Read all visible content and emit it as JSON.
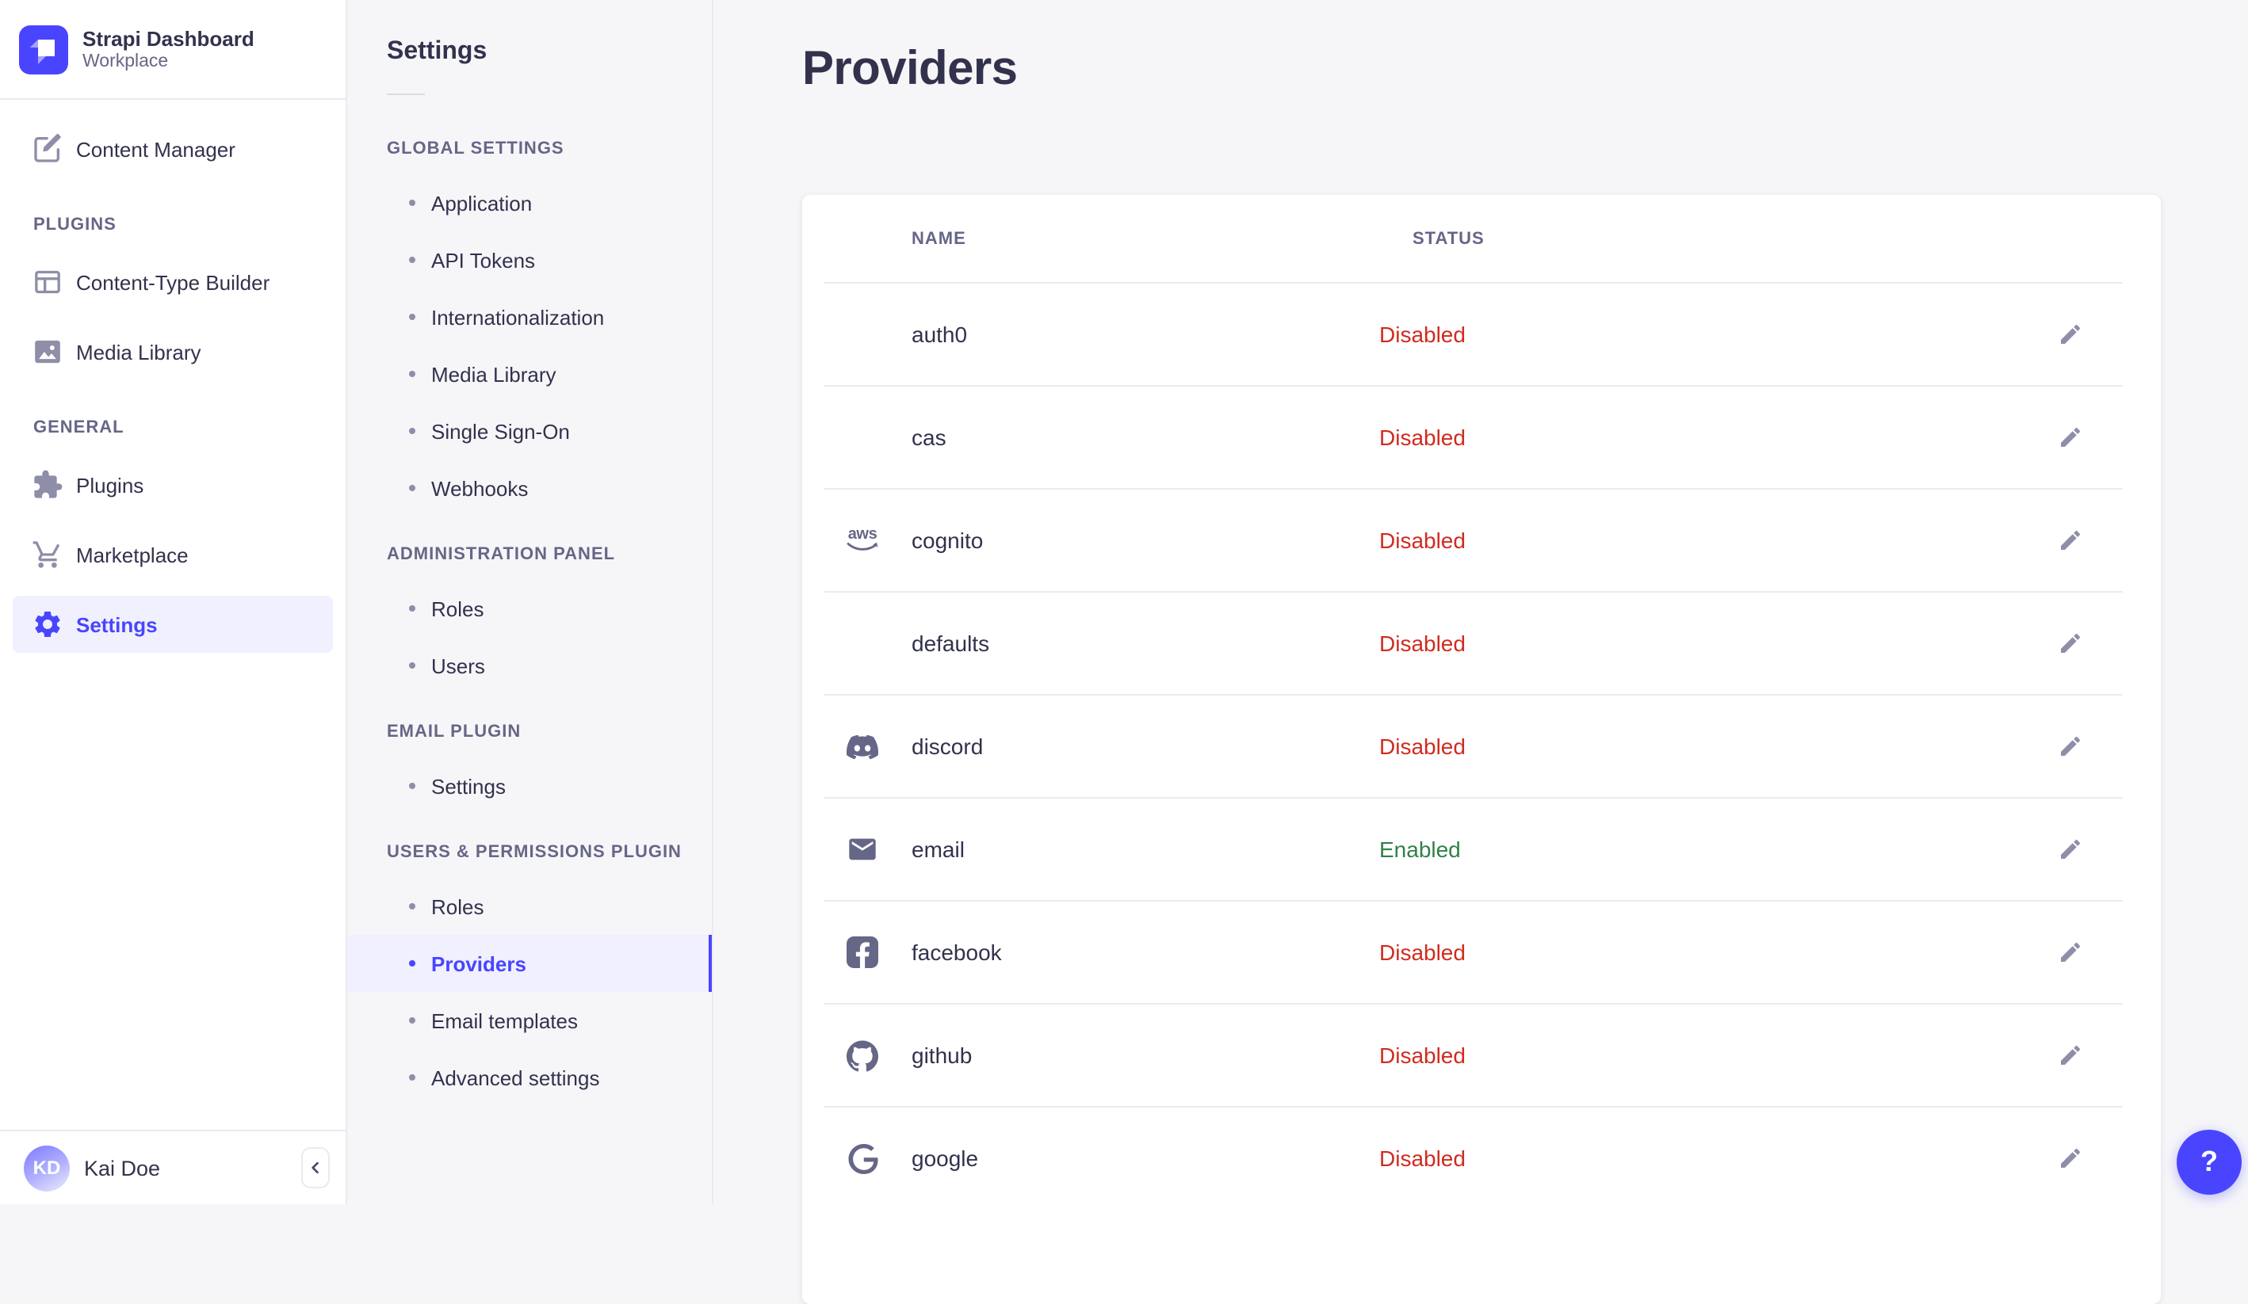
{
  "brand": {
    "name": "Strapi Dashboard",
    "workplace": "Workplace",
    "logo_icon": "strapi-logo-icon"
  },
  "colors": {
    "primary": "#4945ff",
    "primary_bg": "#f0f0ff",
    "text": "#32324d",
    "muted": "#666687",
    "icon_gray": "#8e8ea9",
    "border": "#eaeaef",
    "bg": "#f6f6f9",
    "danger": "#d02b20",
    "success": "#328048"
  },
  "sidebar": {
    "items_top": [
      {
        "label": "Content Manager",
        "icon": "content-manager-icon"
      }
    ],
    "sections": [
      {
        "label": "PLUGINS",
        "items": [
          {
            "label": "Content-Type Builder",
            "icon": "content-type-builder-icon"
          },
          {
            "label": "Media Library",
            "icon": "media-library-icon"
          }
        ]
      },
      {
        "label": "GENERAL",
        "items": [
          {
            "label": "Plugins",
            "icon": "plugins-icon"
          },
          {
            "label": "Marketplace",
            "icon": "marketplace-icon"
          },
          {
            "label": "Settings",
            "icon": "gear-icon",
            "active": true
          }
        ]
      }
    ],
    "user": {
      "name": "Kai Doe",
      "initials": "KD"
    },
    "collapse_icon": "chevron-left-icon"
  },
  "settings_nav": {
    "title": "Settings",
    "sections": [
      {
        "label": "GLOBAL SETTINGS",
        "items": [
          "Application",
          "API Tokens",
          "Internationalization",
          "Media Library",
          "Single Sign-On",
          "Webhooks"
        ]
      },
      {
        "label": "ADMINISTRATION PANEL",
        "items": [
          "Roles",
          "Users"
        ]
      },
      {
        "label": "EMAIL PLUGIN",
        "items": [
          "Settings"
        ]
      },
      {
        "label": "USERS & PERMISSIONS PLUGIN",
        "items": [
          "Roles",
          {
            "label": "Providers",
            "active": true
          },
          "Email templates",
          "Advanced settings"
        ]
      }
    ]
  },
  "main": {
    "title": "Providers",
    "table": {
      "columns": [
        "NAME",
        "STATUS"
      ],
      "edit_icon": "pencil-icon",
      "rows": [
        {
          "name": "auth0",
          "icon": null,
          "status": "Disabled"
        },
        {
          "name": "cas",
          "icon": null,
          "status": "Disabled"
        },
        {
          "name": "cognito",
          "icon": "aws-icon",
          "status": "Disabled"
        },
        {
          "name": "defaults",
          "icon": null,
          "status": "Disabled"
        },
        {
          "name": "discord",
          "icon": "discord-icon",
          "status": "Disabled"
        },
        {
          "name": "email",
          "icon": "email-icon",
          "status": "Enabled"
        },
        {
          "name": "facebook",
          "icon": "facebook-icon",
          "status": "Disabled"
        },
        {
          "name": "github",
          "icon": "github-icon",
          "status": "Disabled"
        },
        {
          "name": "google",
          "icon": "google-icon",
          "status": "Disabled"
        }
      ]
    }
  },
  "help": {
    "icon": "question-mark-icon",
    "label": "?"
  }
}
